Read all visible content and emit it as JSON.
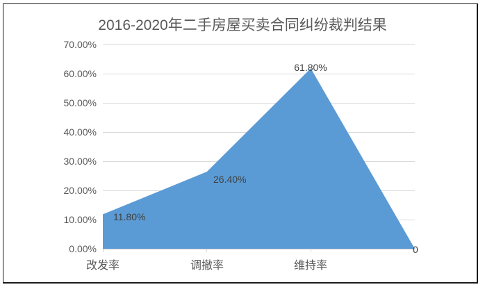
{
  "chart_data": {
    "type": "area",
    "title": "2016-2020年二手房屋买卖合同纠纷裁判结果",
    "categories": [
      "改发率",
      "调撤率",
      "维持率",
      ""
    ],
    "values": [
      11.8,
      26.4,
      61.8,
      0
    ],
    "data_labels": [
      "11.80%",
      "26.40%",
      "61.80%",
      "0"
    ],
    "xlabel": "",
    "ylabel": "",
    "ylim": [
      0,
      70
    ],
    "ytick_step": 10,
    "ytick_labels_top_down": [
      "70.00%",
      "60.00%",
      "50.00%",
      "40.00%",
      "30.00%",
      "20.00%",
      "10.00%",
      "0.00%"
    ],
    "grid": true,
    "legend": "none",
    "colors": {
      "area_fill": "#5B9BD5",
      "gridline": "#D9D9D9",
      "axis_line": "#D6D6D6",
      "axis_text": "#595959",
      "title_text": "#595959",
      "data_label_text": "#404040",
      "frame_border": "#1a1a1a",
      "background": "#FFFFFF"
    }
  }
}
